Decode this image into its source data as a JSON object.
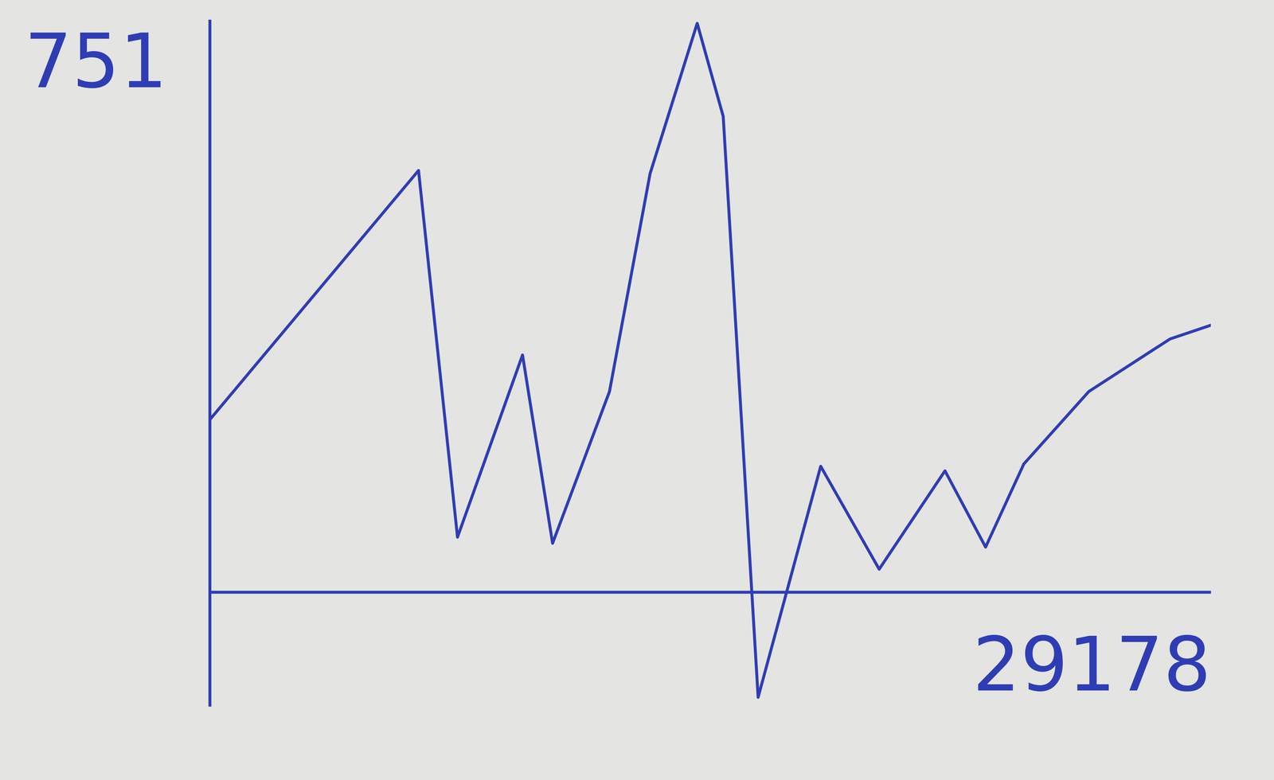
{
  "chart_data": {
    "type": "line",
    "x": [
      0,
      6086,
      7222,
      9117,
      9993,
      11651,
      12835,
      14208,
      14966,
      15984,
      17807,
      19512,
      21430,
      22614,
      23727,
      25621,
      27989,
      29178
    ],
    "values": [
      226,
      553,
      72,
      311,
      64,
      263,
      549,
      746,
      624,
      -138,
      165,
      30,
      159,
      59,
      168,
      263,
      332,
      350
    ],
    "color": "#2f3db5",
    "xlim": [
      0,
      29178
    ],
    "xticks": [
      29178
    ],
    "ylim": [
      -150,
      751
    ],
    "yticks": [
      751
    ],
    "grid": false
  }
}
